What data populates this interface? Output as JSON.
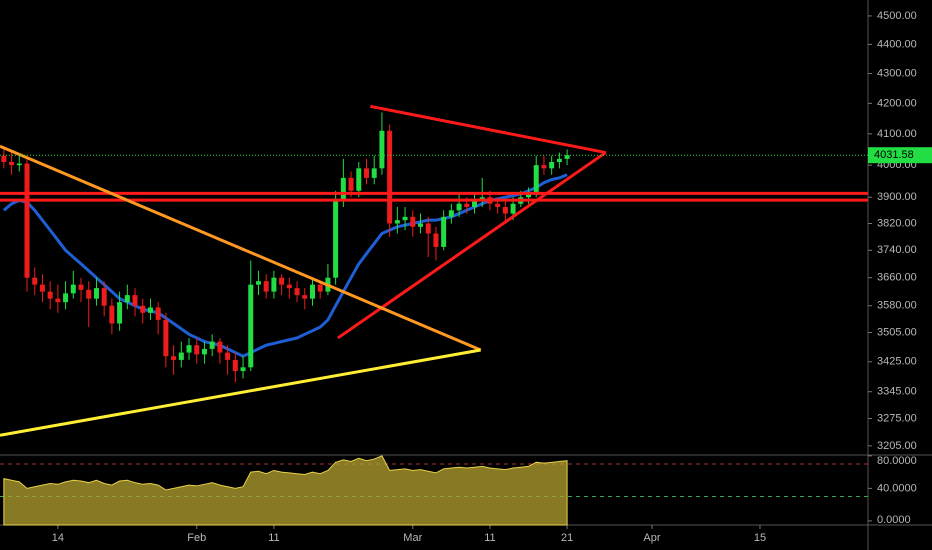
{
  "chart_data": {
    "type": "candlestick",
    "log_scale": true,
    "grid": false,
    "up_color": "#22dd44",
    "down_color": "#ee1c1c",
    "x": [
      7,
      8,
      9,
      10,
      11,
      12,
      13,
      14,
      15,
      16,
      17,
      18,
      19,
      20,
      21,
      22,
      23,
      24,
      25,
      26,
      27,
      28,
      29,
      30,
      31,
      32,
      33,
      34,
      35,
      36,
      37,
      38,
      39,
      40,
      41,
      42,
      43,
      44,
      45,
      46,
      47,
      48,
      49,
      50,
      51,
      52,
      53,
      54,
      55,
      56,
      57,
      58,
      59,
      60,
      61,
      62,
      63,
      64,
      65,
      66,
      67,
      68,
      69,
      70,
      71,
      72,
      73,
      74,
      75,
      76,
      77,
      78,
      79,
      80
    ],
    "open": [
      4030,
      4010,
      4000,
      4005,
      3660,
      3640,
      3620,
      3600,
      3590,
      3615,
      3640,
      3625,
      3600,
      3630,
      3580,
      3530,
      3590,
      3610,
      3580,
      3560,
      3575,
      3540,
      3440,
      3430,
      3450,
      3470,
      3445,
      3460,
      3480,
      3450,
      3430,
      3400,
      3410,
      3640,
      3650,
      3620,
      3660,
      3640,
      3630,
      3610,
      3600,
      3640,
      3620,
      3660,
      3890,
      3960,
      3920,
      3990,
      3960,
      3990,
      4110,
      3820,
      3830,
      3840,
      3810,
      3820,
      3790,
      3750,
      3840,
      3860,
      3880,
      3870,
      3890,
      3900,
      3880,
      3870,
      3850,
      3880,
      3900,
      3910,
      4000,
      3990,
      4010,
      4020
    ],
    "high": [
      4060,
      4040,
      4030,
      4020,
      3690,
      3670,
      3650,
      3640,
      3650,
      3680,
      3660,
      3650,
      3660,
      3650,
      3600,
      3620,
      3640,
      3630,
      3600,
      3600,
      3590,
      3560,
      3470,
      3480,
      3490,
      3490,
      3480,
      3500,
      3490,
      3470,
      3450,
      3440,
      3710,
      3680,
      3670,
      3680,
      3670,
      3660,
      3650,
      3630,
      3660,
      3650,
      3700,
      3920,
      4020,
      3980,
      4010,
      4020,
      4030,
      4170,
      4130,
      3870,
      3870,
      3860,
      3850,
      3840,
      3810,
      3860,
      3880,
      3910,
      3900,
      3910,
      3960,
      3920,
      3900,
      3890,
      3900,
      3920,
      3930,
      4030,
      4030,
      4030,
      4040,
      4050
    ],
    "low": [
      3990,
      3970,
      3980,
      3620,
      3610,
      3590,
      3570,
      3560,
      3570,
      3600,
      3590,
      3520,
      3580,
      3550,
      3500,
      3510,
      3570,
      3550,
      3530,
      3540,
      3500,
      3410,
      3390,
      3410,
      3430,
      3420,
      3420,
      3440,
      3420,
      3390,
      3370,
      3380,
      3400,
      3610,
      3600,
      3600,
      3610,
      3600,
      3590,
      3570,
      3580,
      3600,
      3610,
      3640,
      3870,
      3900,
      3900,
      3940,
      3940,
      3970,
      3780,
      3790,
      3800,
      3780,
      3790,
      3720,
      3710,
      3740,
      3820,
      3840,
      3850,
      3850,
      3870,
      3860,
      3850,
      3820,
      3830,
      3870,
      3880,
      3900,
      3970,
      3970,
      3990,
      4000
    ],
    "close": [
      4010,
      4000,
      4005,
      3660,
      3640,
      3620,
      3600,
      3590,
      3615,
      3640,
      3625,
      3600,
      3630,
      3580,
      3530,
      3590,
      3610,
      3580,
      3560,
      3575,
      3540,
      3440,
      3430,
      3450,
      3470,
      3445,
      3460,
      3480,
      3450,
      3430,
      3400,
      3410,
      3640,
      3650,
      3620,
      3660,
      3640,
      3630,
      3610,
      3600,
      3640,
      3620,
      3660,
      3890,
      3960,
      3920,
      3990,
      3960,
      3990,
      4110,
      3820,
      3830,
      3840,
      3810,
      3820,
      3790,
      3750,
      3840,
      3860,
      3880,
      3870,
      3890,
      3900,
      3880,
      3870,
      3850,
      3880,
      3900,
      3910,
      4000,
      3990,
      4010,
      4020,
      4031.58
    ],
    "moving_average": {
      "color": "#1e5fd6",
      "values": [
        3860,
        3880,
        3890,
        3885,
        3860,
        3830,
        3800,
        3770,
        3740,
        3720,
        3700,
        3680,
        3660,
        3640,
        3620,
        3600,
        3590,
        3580,
        3570,
        3565,
        3560,
        3545,
        3530,
        3515,
        3500,
        3490,
        3480,
        3475,
        3470,
        3460,
        3450,
        3440,
        3450,
        3460,
        3470,
        3475,
        3480,
        3485,
        3490,
        3500,
        3510,
        3520,
        3540,
        3580,
        3620,
        3660,
        3700,
        3730,
        3760,
        3790,
        3800,
        3810,
        3815,
        3820,
        3825,
        3830,
        3830,
        3835,
        3840,
        3850,
        3860,
        3870,
        3880,
        3890,
        3895,
        3900,
        3905,
        3910,
        3920,
        3930,
        3945,
        3955,
        3960,
        3970
      ]
    },
    "drawings": [
      {
        "color": "#ff1a1a",
        "points": [
          [
            54.5,
            4190
          ],
          [
            85,
            4040
          ]
        ]
      },
      {
        "color": "#ff1a1a",
        "points": [
          [
            85,
            4040
          ],
          [
            50.3,
            3490
          ]
        ]
      },
      {
        "color": "#ff1a1a",
        "points": [
          [
            6.5,
            3912
          ],
          [
            119,
            3912
          ]
        ]
      },
      {
        "color": "#ff1a1a",
        "points": [
          [
            6.5,
            3891
          ],
          [
            119,
            3891
          ]
        ]
      },
      {
        "color": "#ff9922",
        "points": [
          [
            6.5,
            4060
          ],
          [
            68.8,
            3457
          ]
        ]
      },
      {
        "color": "#ffee33",
        "points": [
          [
            6.5,
            3232
          ],
          [
            68.8,
            3457
          ]
        ]
      }
    ],
    "xlim": [
      6.5,
      119
    ],
    "ylim": [
      3182,
      4557
    ],
    "yticks": [
      {
        "value": 4500,
        "label": "4500.00"
      },
      {
        "value": 4400,
        "label": "4400.00"
      },
      {
        "value": 4300,
        "label": "4300.00"
      },
      {
        "value": 4200,
        "label": "4200.00"
      },
      {
        "value": 4100,
        "label": "4100.00"
      },
      {
        "value": 4000,
        "label": "4000.00"
      },
      {
        "value": 3900,
        "label": "3900.00"
      },
      {
        "value": 3820,
        "label": "3820.00"
      },
      {
        "value": 3740,
        "label": "3740.00"
      },
      {
        "value": 3660,
        "label": "3660.00"
      },
      {
        "value": 3580,
        "label": "3580.00"
      },
      {
        "value": 3505,
        "label": "3505.00"
      },
      {
        "value": 3425,
        "label": "3425.00"
      },
      {
        "value": 3345,
        "label": "3345.00"
      },
      {
        "value": 3275,
        "label": "3275.00"
      },
      {
        "value": 3205,
        "label": "3205.00"
      }
    ],
    "xticks": [
      {
        "value": 14,
        "label": "14"
      },
      {
        "value": 32,
        "label": "Feb"
      },
      {
        "value": 42,
        "label": "11"
      },
      {
        "value": 60,
        "label": "Mar"
      },
      {
        "value": 70,
        "label": "11"
      },
      {
        "value": 80,
        "label": "21"
      },
      {
        "value": 91,
        "label": "Apr"
      },
      {
        "value": 105,
        "label": "15"
      }
    ],
    "indicator": {
      "color": "#b5a132",
      "values": [
        52,
        50,
        48,
        40,
        42,
        44,
        46,
        45,
        48,
        50,
        49,
        47,
        50,
        46,
        44,
        49,
        50,
        47,
        45,
        46,
        44,
        38,
        40,
        42,
        44,
        43,
        45,
        47,
        44,
        42,
        40,
        42,
        60,
        61,
        58,
        62,
        60,
        59,
        58,
        57,
        60,
        58,
        62,
        72,
        75,
        73,
        77,
        74,
        76,
        80,
        62,
        63,
        64,
        62,
        63,
        61,
        59,
        64,
        65,
        66,
        65,
        66,
        67,
        65,
        64,
        63,
        65,
        66,
        67,
        72,
        71,
        72,
        73,
        74
      ],
      "ylim": [
        -5,
        81
      ],
      "yticks": [
        {
          "value": 80,
          "label": "80.0000"
        },
        {
          "value": 40,
          "label": "40.0000"
        },
        {
          "value": 0,
          "label": "0.0000"
        }
      ],
      "levels": [
        70,
        30
      ]
    }
  }
}
